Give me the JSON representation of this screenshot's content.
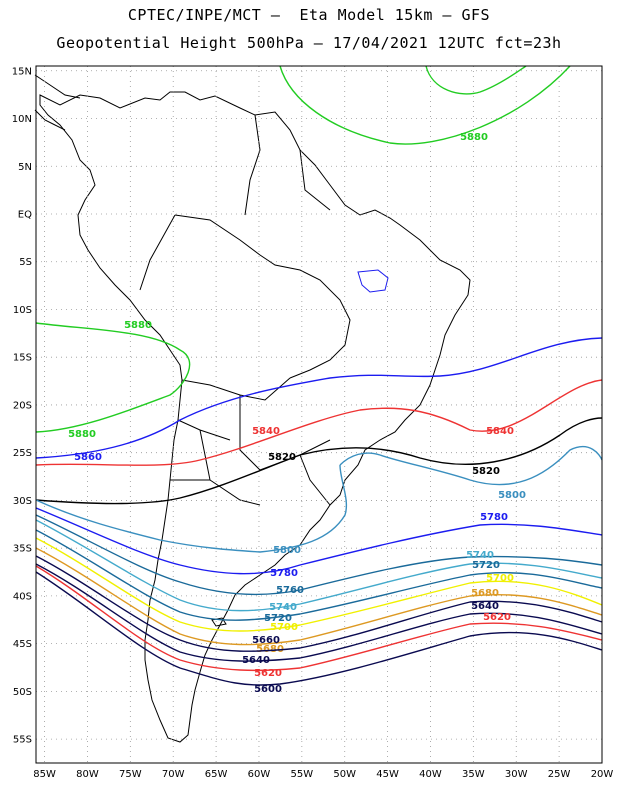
{
  "header": {
    "line1": "CPTEC/INPE/MCT –  Eta Model 15km – GFS",
    "line2": "Geopotential Height 500hPa – 17/04/2021 12UTC fct=23h"
  },
  "axes": {
    "lat_labels": [
      "15N",
      "10N",
      "5N",
      "EQ",
      "5S",
      "10S",
      "15S",
      "20S",
      "25S",
      "30S",
      "35S",
      "40S",
      "45S",
      "50S",
      "55S"
    ],
    "lon_labels": [
      "85W",
      "80W",
      "75W",
      "70W",
      "65W",
      "60W",
      "55W",
      "50W",
      "45W",
      "40W",
      "35W",
      "30W",
      "25W",
      "20W"
    ],
    "lat_range": [
      -57.5,
      15.5
    ],
    "lon_range": [
      -86,
      -20
    ],
    "grid": "dotted"
  },
  "contours": [
    {
      "level": "5880",
      "color": "#22cc22",
      "labels": [
        "5880",
        "5880",
        "5880"
      ]
    },
    {
      "level": "5860",
      "color": "#1c1cf0",
      "labels": [
        "5860"
      ]
    },
    {
      "level": "5840",
      "color": "#ee3333",
      "labels": [
        "5840",
        "5840"
      ]
    },
    {
      "level": "5820",
      "color": "#000000",
      "labels": [
        "5820",
        "5820"
      ]
    },
    {
      "level": "5800",
      "color": "#3a8fbf",
      "labels": [
        "5800",
        "5800"
      ]
    },
    {
      "level": "5780",
      "color": "#1c1cf0",
      "labels": [
        "5780",
        "5780"
      ]
    },
    {
      "level": "5760",
      "color": "#1a6a9a",
      "labels": [
        "5760"
      ]
    },
    {
      "level": "5740",
      "color": "#44aacc",
      "labels": [
        "5740",
        "5740"
      ]
    },
    {
      "level": "5720",
      "color": "#1a6a9a",
      "labels": [
        "5720",
        "5720"
      ]
    },
    {
      "level": "5700",
      "color": "#f0f000",
      "labels": [
        "5700",
        "5700"
      ]
    },
    {
      "level": "5680",
      "color": "#dd9922",
      "labels": [
        "5680",
        "5680"
      ]
    },
    {
      "level": "5660",
      "color": "#0a0a50",
      "labels": [
        "5660"
      ]
    },
    {
      "level": "5640",
      "color": "#0a0a50",
      "labels": [
        "5640",
        "5640"
      ]
    },
    {
      "level": "5620",
      "color": "#ee3333",
      "labels": [
        "5620",
        "5620"
      ]
    },
    {
      "level": "5600",
      "color": "#0a0a50",
      "labels": [
        "5600"
      ]
    }
  ]
}
